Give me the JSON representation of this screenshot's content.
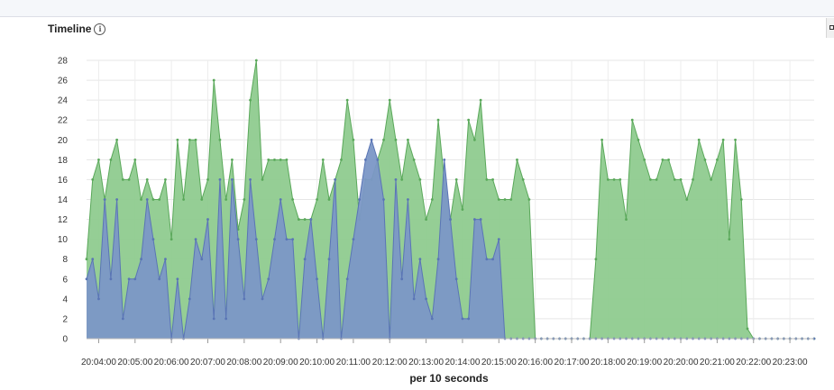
{
  "panel": {
    "title": "Timeline",
    "info_icon": "info-circle-icon"
  },
  "chart_data": {
    "type": "area",
    "stacked": false,
    "title": "Timeline",
    "xlabel": "per 10 seconds",
    "ylabel": "",
    "ylim": [
      0,
      28
    ],
    "grid": true,
    "legend": "none",
    "y_ticks": [
      "0",
      "2",
      "4",
      "6",
      "8",
      "10",
      "12",
      "14",
      "16",
      "18",
      "20",
      "22",
      "24",
      "26",
      "28"
    ],
    "x_tick_labels": [
      "20:04:00",
      "20:05:00",
      "20:06:00",
      "20:07:00",
      "20:08:00",
      "20:09:00",
      "20:10:00",
      "20:11:00",
      "20:12:00",
      "20:13:00",
      "20:14:00",
      "20:15:00",
      "20:16:00",
      "20:17:00",
      "20:18:00",
      "20:19:00",
      "20:20:00",
      "20:21:00",
      "20:22:00",
      "20:23:00"
    ],
    "x_start": "20:03:40",
    "x_step_seconds": 10,
    "series": [
      {
        "color": "#8fcb8f",
        "stroke": "#5aa85a",
        "values": [
          8,
          16,
          18,
          14,
          18,
          20,
          16,
          16,
          18,
          14,
          16,
          14,
          14,
          16,
          10,
          20,
          14,
          20,
          20,
          14,
          16,
          26,
          20,
          14,
          18,
          11,
          14,
          24,
          28,
          16,
          18,
          18,
          18,
          18,
          14,
          12,
          12,
          12,
          14,
          18,
          14,
          16,
          18,
          24,
          20,
          12,
          16,
          16,
          18,
          20,
          24,
          20,
          16,
          20,
          18,
          16,
          12,
          14,
          22,
          16,
          12,
          16,
          13,
          22,
          20,
          24,
          16,
          16,
          14,
          14,
          14,
          18,
          16,
          14,
          0,
          0,
          0,
          0,
          0,
          0,
          0,
          0,
          0,
          0,
          8,
          20,
          16,
          16,
          16,
          12,
          22,
          20,
          18,
          16,
          16,
          18,
          18,
          16,
          16,
          14,
          16,
          20,
          18,
          16,
          18,
          20,
          10,
          20,
          14,
          1,
          0,
          0,
          0,
          0,
          0,
          0,
          0,
          0,
          0,
          0,
          0
        ]
      },
      {
        "color": "#7b97c6",
        "stroke": "#5a75b5",
        "values": [
          6,
          8,
          4,
          14,
          6,
          14,
          2,
          6,
          6,
          8,
          14,
          10,
          6,
          8,
          0,
          6,
          0,
          4,
          10,
          8,
          12,
          2,
          16,
          2,
          16,
          10,
          4,
          16,
          10,
          4,
          6,
          10,
          14,
          10,
          10,
          0,
          8,
          12,
          6,
          0,
          8,
          16,
          0,
          6,
          10,
          14,
          18,
          20,
          18,
          14,
          0,
          16,
          6,
          14,
          4,
          8,
          4,
          2,
          8,
          18,
          12,
          6,
          2,
          2,
          12,
          12,
          8,
          8,
          10,
          0,
          0,
          0,
          0,
          0,
          0,
          0,
          0,
          0,
          0,
          0,
          0,
          0,
          0,
          0,
          0,
          0,
          0,
          0,
          0,
          0,
          0,
          0,
          0,
          0,
          0,
          0,
          0,
          0,
          0,
          0,
          0,
          0,
          0,
          0,
          0,
          0,
          0,
          0,
          0,
          0,
          0,
          0,
          0,
          0,
          0,
          0,
          0,
          0,
          0,
          0,
          0
        ]
      }
    ]
  }
}
